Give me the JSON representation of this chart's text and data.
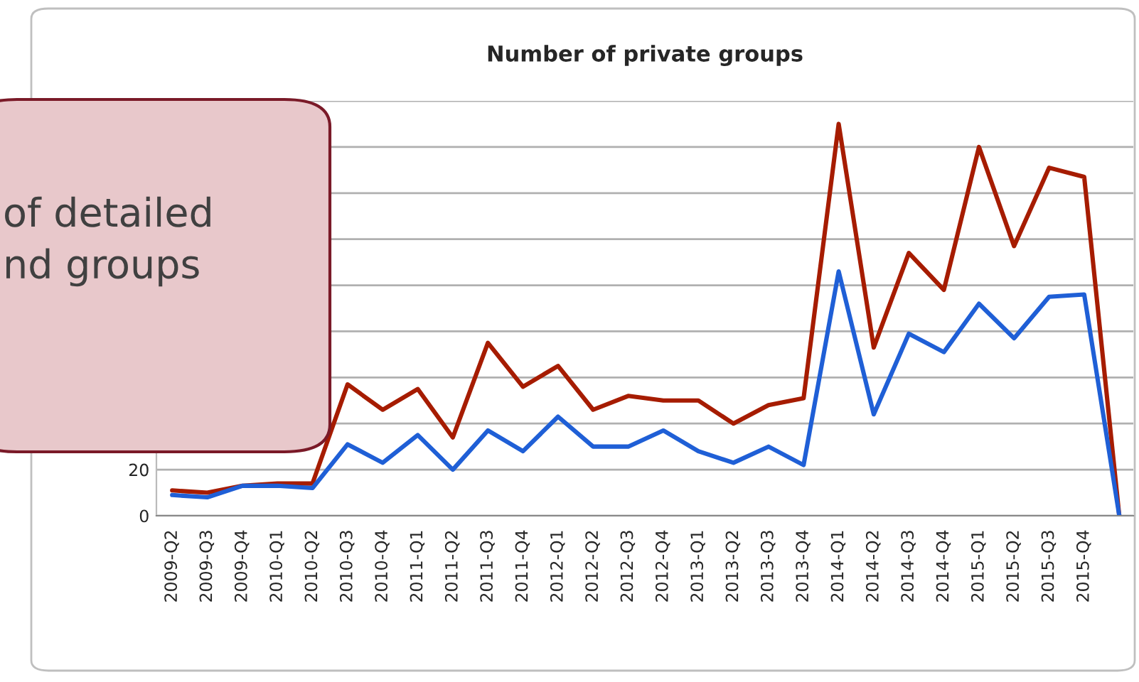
{
  "chart_data": {
    "type": "line",
    "title": "Number of private groups",
    "categories": [
      "2009-Q2",
      "2009-Q3",
      "2009-Q4",
      "2010-Q1",
      "2010-Q2",
      "2010-Q3",
      "2010-Q4",
      "2011-Q1",
      "2011-Q2",
      "2011-Q3",
      "2011-Q4",
      "2012-Q1",
      "2012-Q2",
      "2012-Q3",
      "2012-Q4",
      "2013-Q1",
      "2013-Q2",
      "2013-Q3",
      "2013-Q4",
      "2014-Q1",
      "2014-Q2",
      "2014-Q3",
      "2014-Q4",
      "2015-Q1",
      "2015-Q2",
      "2015-Q3",
      "2015-Q4",
      null
    ],
    "series": [
      {
        "color": "#a61c00",
        "values": [
          11,
          10,
          13,
          14,
          14,
          57,
          46,
          55,
          34,
          75,
          56,
          65,
          46,
          52,
          50,
          50,
          40,
          48,
          51,
          170,
          73,
          114,
          98,
          160,
          117,
          151,
          147,
          0
        ]
      },
      {
        "color": "#1f5fd6",
        "values": [
          9,
          8,
          13,
          13,
          12,
          31,
          23,
          35,
          20,
          37,
          28,
          43,
          30,
          30,
          37,
          28,
          23,
          30,
          22,
          106,
          44,
          79,
          71,
          92,
          77,
          95,
          96,
          0
        ]
      }
    ],
    "ylim": [
      0,
      180
    ],
    "yticks": [
      0,
      20,
      {
        "value": 40,
        "label": null
      },
      {
        "value": 60,
        "label": null
      },
      {
        "value": 80,
        "label": null
      },
      {
        "value": 100,
        "label": null
      },
      {
        "value": 120,
        "label": null
      },
      {
        "value": 140,
        "label": null
      },
      {
        "value": 160,
        "label": null
      },
      {
        "value": 180,
        "label": null
      }
    ],
    "grid": "y",
    "marker": "none",
    "line_style": "solid",
    "annotations": [
      "of detailed\nnd groups"
    ]
  }
}
